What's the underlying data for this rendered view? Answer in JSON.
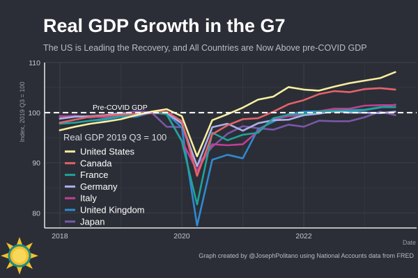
{
  "chart_data": {
    "type": "line",
    "title": "Real GDP Growth in the G7",
    "subtitle": "The US is Leading the Recovery, and All Countries are Now Above pre-COVID GDP",
    "ylabel": "Index, 2019 Q3 = 100",
    "xlabel": "Date",
    "ylim": [
      77,
      110
    ],
    "xlim": [
      2017.75,
      2023.85
    ],
    "yticks": [
      80,
      90,
      100,
      110
    ],
    "xticks": [
      2018,
      2020,
      2022
    ],
    "grid": true,
    "legend_title": "Real GDP 2019 Q3 = 100",
    "legend_position": "left-center",
    "reference_line": {
      "value": 100,
      "label": "Pre-COVID GDP"
    },
    "x": [
      2018.0,
      2018.25,
      2018.5,
      2018.75,
      2019.0,
      2019.25,
      2019.5,
      2019.75,
      2020.0,
      2020.25,
      2020.5,
      2020.75,
      2021.0,
      2021.25,
      2021.5,
      2021.75,
      2022.0,
      2022.25,
      2022.5,
      2022.75,
      2023.0,
      2023.25,
      2023.5
    ],
    "series": [
      {
        "name": "United States",
        "color": "#f7efa0",
        "values": [
          96.5,
          97.2,
          97.8,
          98.2,
          98.7,
          99.5,
          100.2,
          100.7,
          99.3,
          91.3,
          98.5,
          99.7,
          101.0,
          102.6,
          103.2,
          105.1,
          104.6,
          104.4,
          105.2,
          105.9,
          106.4,
          106.9,
          108.1
        ]
      },
      {
        "name": "Canada",
        "color": "#e4626a",
        "values": [
          98.0,
          98.6,
          99.2,
          99.4,
          99.6,
          99.8,
          100.1,
          100.2,
          98.3,
          87.4,
          95.7,
          97.5,
          98.7,
          98.9,
          100.2,
          101.7,
          102.5,
          103.7,
          104.3,
          104.1,
          104.7,
          104.9,
          104.6
        ]
      },
      {
        "name": "France",
        "color": "#1fa39a",
        "values": [
          97.8,
          98.0,
          98.4,
          98.8,
          99.3,
          99.7,
          100.1,
          99.7,
          94.3,
          81.7,
          96.0,
          94.5,
          95.6,
          96.0,
          98.9,
          99.6,
          99.8,
          100.2,
          100.4,
          100.5,
          100.6,
          101.1,
          101.1
        ]
      },
      {
        "name": "Germany",
        "color": "#aab2e8",
        "values": [
          98.8,
          99.2,
          99.3,
          99.5,
          99.9,
          99.7,
          100.0,
          100.0,
          97.8,
          89.3,
          97.1,
          97.8,
          96.4,
          97.9,
          98.5,
          98.6,
          99.5,
          99.8,
          100.3,
          100.0,
          100.0,
          99.9,
          100.2
        ]
      },
      {
        "name": "Italy",
        "color": "#c13f95",
        "values": [
          99.3,
          99.3,
          99.2,
          99.1,
          99.4,
          99.6,
          99.9,
          99.8,
          94.4,
          88.4,
          93.7,
          93.5,
          93.7,
          96.3,
          98.7,
          99.3,
          99.5,
          100.3,
          100.8,
          100.8,
          101.4,
          101.5,
          101.5
        ]
      },
      {
        "name": "United Kingdom",
        "color": "#2f8ad1",
        "values": [
          97.9,
          98.0,
          98.4,
          98.6,
          99.2,
          99.2,
          100.0,
          99.9,
          97.0,
          77.5,
          90.6,
          91.6,
          90.9,
          96.7,
          98.2,
          99.7,
          100.2,
          100.3,
          100.2,
          100.3,
          100.5,
          101.0,
          101.6
        ]
      },
      {
        "name": "Japan",
        "color": "#7b57a8",
        "values": [
          99.1,
          99.4,
          99.0,
          99.4,
          99.8,
          100.3,
          100.1,
          97.2,
          97.1,
          89.5,
          93.2,
          95.8,
          97.3,
          96.9,
          96.6,
          97.6,
          97.2,
          98.4,
          98.3,
          98.3,
          99.1,
          100.2,
          99.5
        ]
      }
    ]
  },
  "footer": {
    "credit": "Graph created by @JosephPolitano using National Accounts data from FRED"
  }
}
